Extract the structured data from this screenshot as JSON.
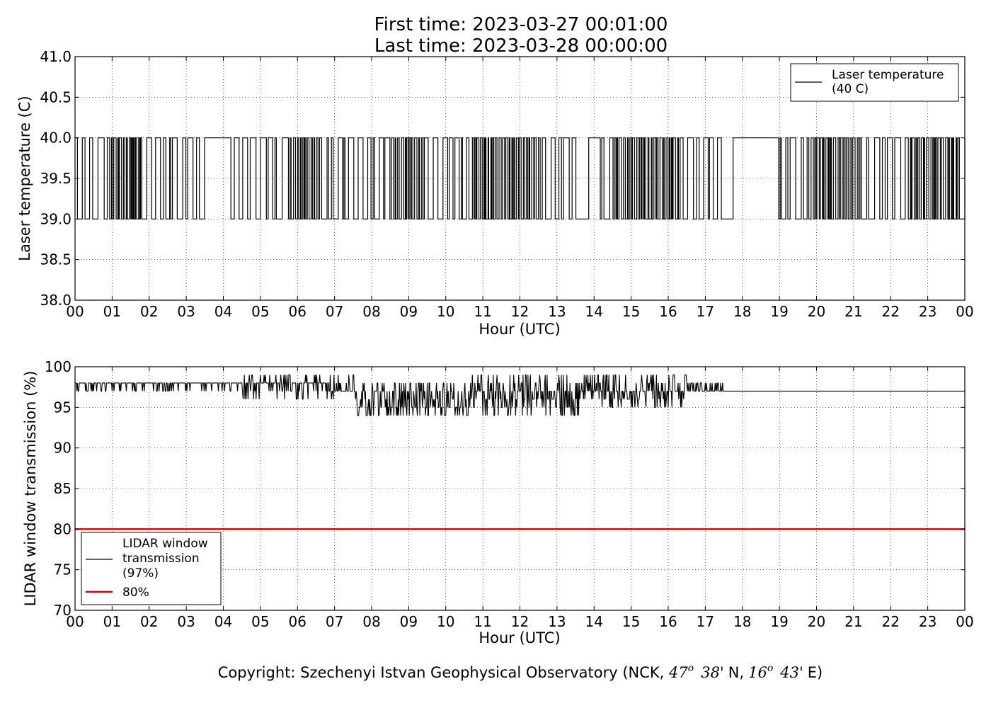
{
  "figure": {
    "title_lines": [
      "First time: 2023-03-27 00:01:00",
      "Last time: 2023-03-28 00:00:00"
    ],
    "copyright": "Copyright: Szechenyi Istvan Geophysical Observatory (NCK, 47° 38' N, 16° 43' E)",
    "copyright_parts": {
      "prefix": "Copyright: Szechenyi Istvan Geophysical Observatory (NCK, ",
      "lat_deg": "47",
      "lat_min": "38'",
      "lat_suffix": "N,",
      "lon_deg": "16",
      "lon_min": "43'",
      "lon_suffix": "E)",
      "degree_mark": "o"
    }
  },
  "chart_data": [
    {
      "type": "line",
      "xlabel": "Hour (UTC)",
      "ylabel": "Laser temperature (C)",
      "xlim": [
        0,
        24
      ],
      "ylim": [
        38.0,
        41.0
      ],
      "x_ticks": [
        0,
        1,
        2,
        3,
        4,
        5,
        6,
        7,
        8,
        9,
        10,
        11,
        12,
        13,
        14,
        15,
        16,
        17,
        18,
        19,
        20,
        21,
        22,
        23,
        24
      ],
      "x_tick_labels": [
        "00",
        "01",
        "02",
        "03",
        "04",
        "05",
        "06",
        "07",
        "08",
        "09",
        "10",
        "11",
        "12",
        "13",
        "14",
        "15",
        "16",
        "17",
        "18",
        "19",
        "20",
        "21",
        "22",
        "23",
        "00"
      ],
      "y_ticks": [
        38.0,
        38.5,
        39.0,
        39.5,
        40.0,
        40.5,
        41.0
      ],
      "y_tick_labels": [
        "38.0",
        "38.5",
        "39.0",
        "39.5",
        "40.0",
        "40.5",
        "41.0"
      ],
      "grid": true,
      "legend": {
        "placement": "top-right",
        "entries": [
          {
            "label_lines": [
              "Laser temperature",
              "(40 C)"
            ],
            "color": "#000000"
          }
        ]
      },
      "series": [
        {
          "name": "Laser temperature (40 C)",
          "color": "#000000",
          "description_values": [
            39,
            40
          ],
          "mostly_40_spans_hours": [
            [
              3.3,
              4.0
            ],
            [
              13.45,
              14.0
            ],
            [
              17.4,
              18.7
            ]
          ],
          "dense_toggle_spans_hours": [
            [
              1.0,
              1.8
            ],
            [
              5.8,
              6.6
            ],
            [
              8.4,
              9.4
            ],
            [
              10.7,
              12.6
            ],
            [
              14.5,
              16.3
            ],
            [
              19.7,
              21.2
            ],
            [
              22.4,
              23.8
            ]
          ],
          "seed": 27
        }
      ]
    },
    {
      "type": "line",
      "xlabel": "Hour (UTC)",
      "ylabel": "LIDAR window transmission (%)",
      "xlim": [
        0,
        24
      ],
      "ylim": [
        70,
        100
      ],
      "x_ticks": [
        0,
        1,
        2,
        3,
        4,
        5,
        6,
        7,
        8,
        9,
        10,
        11,
        12,
        13,
        14,
        15,
        16,
        17,
        18,
        19,
        20,
        21,
        22,
        23,
        24
      ],
      "x_tick_labels": [
        "00",
        "01",
        "02",
        "03",
        "04",
        "05",
        "06",
        "07",
        "08",
        "09",
        "10",
        "11",
        "12",
        "13",
        "14",
        "15",
        "16",
        "17",
        "18",
        "19",
        "20",
        "21",
        "22",
        "23",
        "00"
      ],
      "y_ticks": [
        70,
        75,
        80,
        85,
        90,
        95,
        100
      ],
      "y_tick_labels": [
        "70",
        "75",
        "80",
        "85",
        "90",
        "95",
        "100"
      ],
      "grid": true,
      "legend": {
        "placement": "bottom-left",
        "entries": [
          {
            "label_lines": [
              "LIDAR window",
              "transmission",
              "(97%)"
            ],
            "color": "#000000"
          },
          {
            "label_lines": [
              "80%"
            ],
            "color": "#e00000"
          }
        ]
      },
      "series": [
        {
          "name": "LIDAR window transmission (97%)",
          "color": "#000000",
          "baseline_before_hours": 98,
          "phases": [
            {
              "from": 0.0,
              "to": 4.5,
              "base": 98,
              "dips": [
                97
              ],
              "dip_prob": 0.18
            },
            {
              "from": 4.5,
              "to": 6.8,
              "base": 98,
              "dips": [
                97,
                99,
                96
              ],
              "dip_prob": 0.45
            },
            {
              "from": 6.8,
              "to": 7.6,
              "base": 97,
              "dips": [
                98,
                99,
                96
              ],
              "dip_prob": 0.5
            },
            {
              "from": 7.6,
              "to": 10.6,
              "base": 97,
              "dips": [
                96,
                95,
                98,
                94
              ],
              "dip_prob": 0.75
            },
            {
              "from": 10.6,
              "to": 13.8,
              "base": 97,
              "dips": [
                96,
                98,
                95,
                99,
                94
              ],
              "dip_prob": 0.7
            },
            {
              "from": 13.8,
              "to": 16.5,
              "base": 97,
              "dips": [
                98,
                96,
                99,
                95
              ],
              "dip_prob": 0.6
            },
            {
              "from": 16.5,
              "to": 17.5,
              "base": 97,
              "dips": [
                98
              ],
              "dip_prob": 0.5
            },
            {
              "from": 17.5,
              "to": 24.0,
              "base": 97,
              "dips": [],
              "dip_prob": 0
            }
          ],
          "seed": 11
        },
        {
          "name": "80%",
          "color": "#e00000",
          "x": [
            0,
            24
          ],
          "y": [
            80,
            80
          ]
        }
      ]
    }
  ]
}
